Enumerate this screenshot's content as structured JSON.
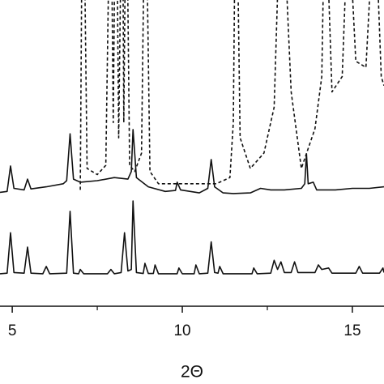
{
  "chart_data": {
    "type": "line",
    "x_label": "2Θ",
    "xlim": [
      4.64,
      15.93
    ],
    "xticks": [
      5,
      10,
      15
    ],
    "xminor": [
      7.5,
      12.5
    ],
    "ylim": [
      0,
      100
    ],
    "series": [
      {
        "color": "#111111",
        "dashed": true,
        "x": [
          7.0,
          7.05,
          7.12,
          7.2,
          7.5,
          7.75,
          7.85,
          7.92,
          7.97,
          8.02,
          8.08,
          8.13,
          8.2,
          8.25,
          8.28,
          8.33,
          8.38,
          8.45,
          8.6,
          8.8,
          8.88,
          8.95,
          9.05,
          9.3,
          11.0,
          11.4,
          11.5,
          11.55,
          11.62,
          11.7,
          12.0,
          12.4,
          12.7,
          12.85,
          13.0,
          13.2,
          13.5,
          13.9,
          14.1,
          14.17,
          14.25,
          14.4,
          14.7,
          14.85,
          14.92,
          15.1,
          15.4,
          15.6,
          15.7,
          15.85,
          15.93
        ],
        "values": [
          38,
          120,
          120,
          45,
          43,
          46,
          120,
          120,
          60,
          120,
          120,
          55,
          120,
          120,
          60,
          120,
          120,
          46,
          44,
          50,
          120,
          120,
          44,
          40,
          40,
          42,
          60,
          120,
          120,
          55,
          45,
          50,
          65,
          120,
          120,
          70,
          45,
          58,
          75,
          120,
          120,
          70,
          75,
          120,
          120,
          80,
          78,
          120,
          120,
          75,
          72
        ]
      },
      {
        "color": "#111111",
        "dashed": false,
        "x": [
          4.64,
          4.85,
          4.95,
          5.05,
          5.35,
          5.45,
          5.55,
          6.0,
          6.5,
          6.6,
          6.7,
          6.8,
          7.0,
          7.5,
          8.0,
          8.4,
          8.5,
          8.55,
          8.65,
          9.0,
          9.5,
          9.8,
          9.85,
          9.95,
          10.5,
          10.75,
          10.85,
          10.95,
          11.2,
          11.5,
          12.0,
          12.3,
          12.6,
          13.0,
          13.5,
          13.6,
          13.65,
          13.7,
          13.85,
          13.95,
          14.5,
          15.0,
          15.5,
          15.93
        ],
        "values": [
          37.2,
          37.5,
          45.8,
          38.5,
          38,
          41.5,
          38.3,
          39,
          40,
          41,
          56.3,
          41.5,
          40.5,
          41,
          42,
          41.5,
          44,
          57.7,
          42,
          39,
          37.5,
          37.8,
          40.5,
          38,
          37,
          38.5,
          47.9,
          39,
          37,
          36.8,
          37,
          38.5,
          38,
          38,
          38.5,
          40,
          49.7,
          40,
          40.5,
          38,
          38,
          38.5,
          38.5,
          39
        ]
      },
      {
        "color": "#111111",
        "dashed": false,
        "x": [
          4.64,
          4.85,
          4.95,
          5.05,
          5.35,
          5.45,
          5.55,
          5.9,
          6.0,
          6.1,
          6.6,
          6.7,
          6.8,
          6.95,
          7.0,
          7.1,
          7.8,
          7.9,
          8.0,
          8.2,
          8.3,
          8.4,
          8.5,
          8.55,
          8.65,
          8.85,
          8.9,
          9.0,
          9.15,
          9.2,
          9.3,
          9.85,
          9.9,
          10.0,
          10.35,
          10.4,
          10.5,
          10.75,
          10.85,
          10.95,
          11.05,
          11.1,
          11.2,
          12.05,
          12.1,
          12.2,
          12.6,
          12.7,
          12.8,
          12.9,
          13.0,
          13.2,
          13.3,
          13.4,
          13.9,
          14.0,
          14.1,
          14.3,
          14.4,
          15.1,
          15.2,
          15.3,
          15.8,
          15.9,
          15.93
        ],
        "values": [
          10.6,
          10.8,
          24,
          11,
          10.8,
          19.3,
          10.8,
          10.6,
          13,
          10.6,
          10.8,
          31,
          10.8,
          10.6,
          12,
          10.6,
          10.6,
          12,
          10.6,
          11,
          24,
          11.5,
          12,
          34.4,
          11,
          10.7,
          14,
          10.7,
          10.7,
          13.5,
          10.6,
          10.6,
          12.5,
          10.6,
          10.6,
          13.5,
          10.6,
          10.8,
          21,
          11,
          10.8,
          13,
          10.6,
          10.6,
          12.5,
          10.6,
          10.8,
          15,
          12,
          14.5,
          11,
          11,
          14.5,
          11,
          11,
          13.5,
          12,
          12.5,
          10.8,
          10.8,
          13,
          10.8,
          10.8,
          12.5,
          11
        ]
      }
    ]
  }
}
